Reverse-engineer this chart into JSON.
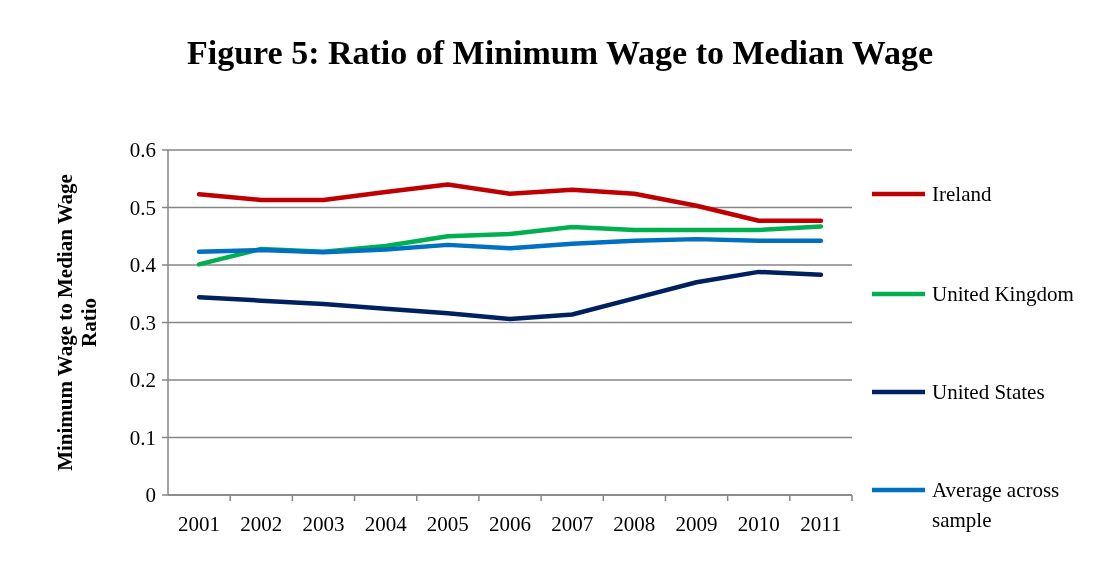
{
  "chart_data": {
    "type": "line",
    "title": "Figure 5: Ratio of Minimum Wage to Median Wage",
    "ylabel": "Minimum Wage to Median Wage Ratio",
    "categories": [
      "2001",
      "2002",
      "2003",
      "2004",
      "2005",
      "2006",
      "2007",
      "2008",
      "2009",
      "2010",
      "2011"
    ],
    "series": [
      {
        "name": "Ireland",
        "color": "#c00000",
        "values": [
          0.523,
          0.513,
          0.513,
          0.527,
          0.54,
          0.524,
          0.531,
          0.524,
          0.503,
          0.477,
          0.477
        ]
      },
      {
        "name": "United Kingdom",
        "color": "#00b050",
        "values": [
          0.401,
          0.428,
          0.423,
          0.433,
          0.45,
          0.454,
          0.466,
          0.461,
          0.461,
          0.461,
          0.467
        ]
      },
      {
        "name": "United States",
        "color": "#002060",
        "values": [
          0.344,
          0.338,
          0.332,
          0.324,
          0.316,
          0.306,
          0.314,
          0.342,
          0.37,
          0.388,
          0.383
        ]
      },
      {
        "name": "Average across sample",
        "color": "#0070c0",
        "values": [
          0.423,
          0.426,
          0.422,
          0.427,
          0.435,
          0.429,
          0.437,
          0.442,
          0.445,
          0.442,
          0.442
        ]
      }
    ],
    "ylim": [
      0,
      0.6
    ],
    "yticks": [
      0,
      0.1,
      0.2,
      0.3,
      0.4,
      0.5,
      0.6
    ],
    "grid": "y",
    "legend": "right",
    "marker": "none",
    "line_style": "solid"
  }
}
